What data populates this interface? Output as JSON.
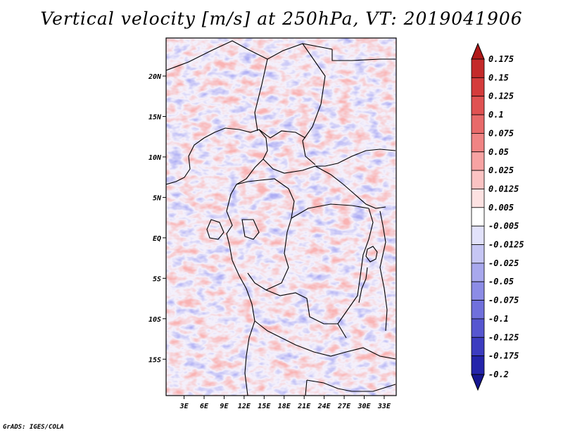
{
  "chart_data": {
    "type": "heatmap",
    "title": "Vertical velocity [m/s] at 250hPa, VT: 2019041906",
    "variable": "Vertical velocity",
    "units": "m/s",
    "level": "250hPa",
    "valid_time": "2019041906",
    "x_ticks": [
      "3E",
      "6E",
      "9E",
      "12E",
      "15E",
      "18E",
      "21E",
      "24E",
      "27E",
      "30E",
      "33E"
    ],
    "x_values": [
      3,
      6,
      9,
      12,
      15,
      18,
      21,
      24,
      27,
      30,
      33
    ],
    "y_ticks": [
      "20N",
      "15N",
      "10N",
      "5N",
      "EQ",
      "5S",
      "10S",
      "15S"
    ],
    "y_values": [
      20,
      15,
      10,
      5,
      0,
      -5,
      -10,
      -15
    ],
    "xlim": [
      0.3,
      34.8
    ],
    "ylim": [
      -19.5,
      24.7
    ],
    "colorbar": {
      "levels": [
        "0.175",
        "0.15",
        "0.125",
        "0.1",
        "0.075",
        "0.05",
        "0.025",
        "0.0125",
        "0.005",
        "-0.005",
        "-0.0125",
        "-0.025",
        "-0.05",
        "-0.075",
        "-0.1",
        "-0.125",
        "-0.175",
        "-0.2"
      ],
      "colors": [
        "#b01818",
        "#c42a2a",
        "#d43c3c",
        "#e05252",
        "#e86a6a",
        "#f08484",
        "#f7a3a3",
        "#fbc3c3",
        "#fde2e2",
        "#ffffff",
        "#e2e2fb",
        "#c6c6f4",
        "#a8a8ed",
        "#8c8ce6",
        "#7070dc",
        "#5656d0",
        "#3c3cc0",
        "#2424aa",
        "#161690"
      ],
      "extend": "both"
    }
  },
  "footer": "GrADS: IGES/COLA"
}
